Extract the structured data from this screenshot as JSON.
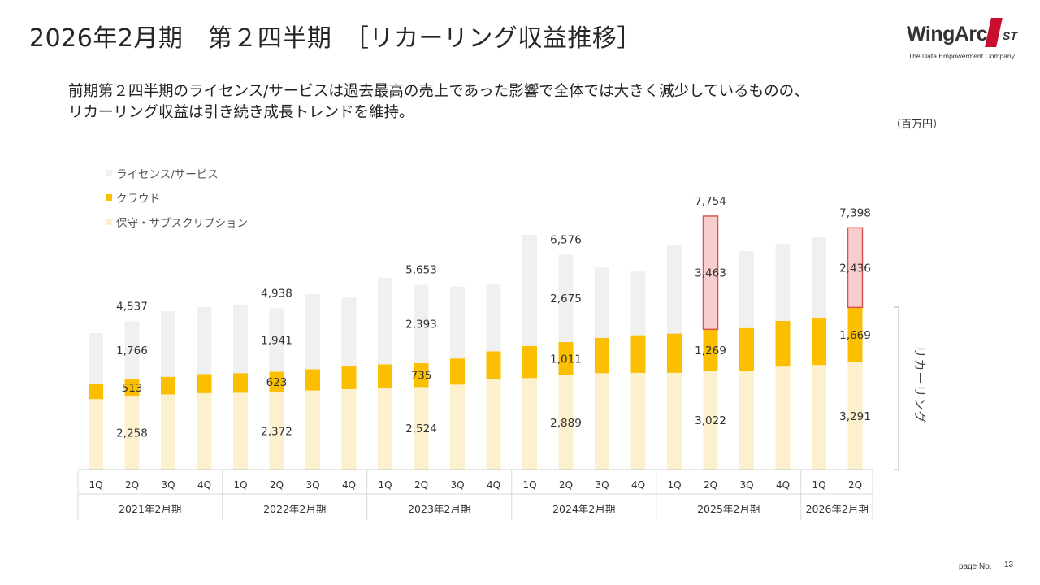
{
  "header": {
    "title": "2026年2月期　第２四半期　［リカーリング収益推移］"
  },
  "logo": {
    "wordmark": "WingArc",
    "suffix": "ST",
    "tagline": "The Data Empowerment Company"
  },
  "description": {
    "line1": "前期第２四半期のライセンス/サービスは過去最高の売上であった影響で全体では大きく減少しているものの、",
    "line2": "リカーリング収益は引き続き成長トレンドを維持。"
  },
  "unit_label": "（百万円）",
  "colors": {
    "license": "#f0f0f0",
    "cloud": "#fbbf00",
    "maintenance": "#fdf0cc",
    "highlight_fill": "#f8cdcd",
    "highlight_stroke": "#d9534f"
  },
  "chart_data": {
    "type": "bar",
    "stacked": true,
    "categories": [
      "1Q",
      "2Q",
      "3Q",
      "4Q",
      "1Q",
      "2Q",
      "3Q",
      "4Q",
      "1Q",
      "2Q",
      "3Q",
      "4Q",
      "1Q",
      "2Q",
      "3Q",
      "4Q",
      "1Q",
      "2Q",
      "3Q",
      "4Q",
      "1Q",
      "2Q"
    ],
    "groups": [
      {
        "label": "2021年2月期",
        "count": 4
      },
      {
        "label": "2022年2月期",
        "count": 4
      },
      {
        "label": "2023年2月期",
        "count": 4
      },
      {
        "label": "2024年2月期",
        "count": 4
      },
      {
        "label": "2025年2月期",
        "count": 4
      },
      {
        "label": "2026年2月期",
        "count": 2
      }
    ],
    "series": [
      {
        "key": "maintenance",
        "name": "保守・サブスクリプション",
        "values": [
          2155,
          2258,
          2300,
          2340,
          2350,
          2372,
          2420,
          2460,
          2500,
          2524,
          2600,
          2760,
          2800,
          2889,
          2950,
          2960,
          2960,
          3022,
          3030,
          3150,
          3200,
          3291
        ]
      },
      {
        "key": "cloud",
        "name": "クラウド",
        "values": [
          470,
          513,
          540,
          580,
          600,
          623,
          650,
          700,
          720,
          735,
          800,
          860,
          980,
          1011,
          1080,
          1150,
          1200,
          1269,
          1300,
          1400,
          1450,
          1669
        ]
      },
      {
        "key": "license",
        "name": "ライセンス/サービス",
        "values": [
          1550,
          1766,
          2000,
          2050,
          2100,
          1941,
          2300,
          2100,
          2650,
          2393,
          2200,
          2050,
          3400,
          2675,
          2150,
          1950,
          2700,
          3463,
          2350,
          2350,
          2450,
          2436
        ]
      }
    ],
    "legend": [
      "ライセンス/サービス",
      "クラウド",
      "保守・サブスクリプション"
    ],
    "data_labels": [
      {
        "index": 1,
        "total": "4,537",
        "license": "1,766",
        "cloud": "513",
        "maintenance": "2,258"
      },
      {
        "index": 5,
        "total": "4,938",
        "license": "1,941",
        "cloud": "623",
        "maintenance": "2,372"
      },
      {
        "index": 9,
        "total": "5,653",
        "license": "2,393",
        "cloud": "735",
        "maintenance": "2,524"
      },
      {
        "index": 13,
        "total": "6,576",
        "license": "2,675",
        "cloud": "1,011",
        "maintenance": "2,889"
      },
      {
        "index": 17,
        "total": "7,754",
        "license": "3,463",
        "cloud": "1,269",
        "maintenance": "3,022"
      },
      {
        "index": 21,
        "total": "7,398",
        "license": "2,436",
        "cloud": "1,669",
        "maintenance": "3,291"
      }
    ],
    "highlighted": [
      17,
      21
    ],
    "bracket_label": "リカーリング",
    "ylim": [
      0,
      8200
    ]
  },
  "footer": {
    "page_label": "page No.",
    "page_number": "13"
  }
}
